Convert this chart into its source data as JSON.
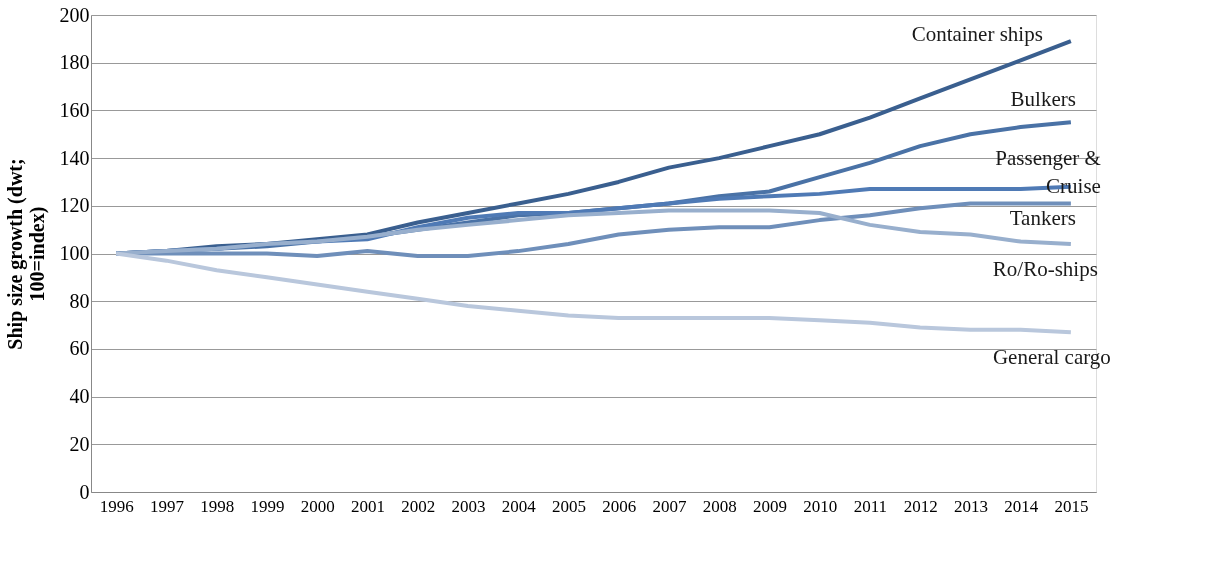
{
  "chart_data": {
    "type": "line",
    "ylabel": "Ship size growth (dwt; 100=index)",
    "categories": [
      "1996",
      "1997",
      "1998",
      "1999",
      "2000",
      "2001",
      "2002",
      "2003",
      "2004",
      "2005",
      "2006",
      "2007",
      "2008",
      "2009",
      "2010",
      "2011",
      "2012",
      "2013",
      "2014",
      "2015"
    ],
    "series": [
      {
        "name": "Container ships",
        "color": "#3a5f8f",
        "values": [
          100,
          101,
          103,
          104,
          106,
          108,
          113,
          117,
          121,
          125,
          130,
          136,
          140,
          145,
          150,
          157,
          165,
          173,
          181,
          189
        ]
      },
      {
        "name": "Bulkers",
        "color": "#4a72a6",
        "values": [
          100,
          101,
          102,
          103,
          105,
          107,
          110,
          113,
          116,
          117,
          119,
          121,
          124,
          126,
          132,
          138,
          145,
          150,
          153,
          155
        ]
      },
      {
        "name": "Passenger & Cruise",
        "color": "#4f7ab5",
        "values": [
          100,
          101,
          102,
          104,
          105,
          106,
          111,
          115,
          117,
          117,
          119,
          121,
          123,
          124,
          125,
          127,
          127,
          127,
          127,
          128
        ]
      },
      {
        "name": "Tankers",
        "color": "#6f8fba",
        "values": [
          100,
          100,
          100,
          100,
          99,
          101,
          99,
          99,
          101,
          104,
          108,
          110,
          111,
          111,
          114,
          116,
          119,
          121,
          121,
          121
        ]
      },
      {
        "name": "Ro/Ro-ships",
        "color": "#98afcd",
        "values": [
          100,
          101,
          102,
          104,
          105,
          107,
          110,
          112,
          114,
          116,
          117,
          118,
          118,
          118,
          117,
          112,
          109,
          108,
          105,
          104
        ]
      },
      {
        "name": "General cargo",
        "color": "#b9c7dc",
        "values": [
          100,
          97,
          93,
          90,
          87,
          84,
          81,
          78,
          76,
          74,
          73,
          73,
          73,
          73,
          72,
          71,
          69,
          68,
          68,
          67
        ]
      }
    ],
    "ylim": [
      0,
      200
    ],
    "yticks": [
      0,
      20,
      40,
      60,
      80,
      100,
      120,
      140,
      160,
      180,
      200
    ],
    "grid": "y",
    "legend": false,
    "marker": "none",
    "line_style": "solid"
  }
}
